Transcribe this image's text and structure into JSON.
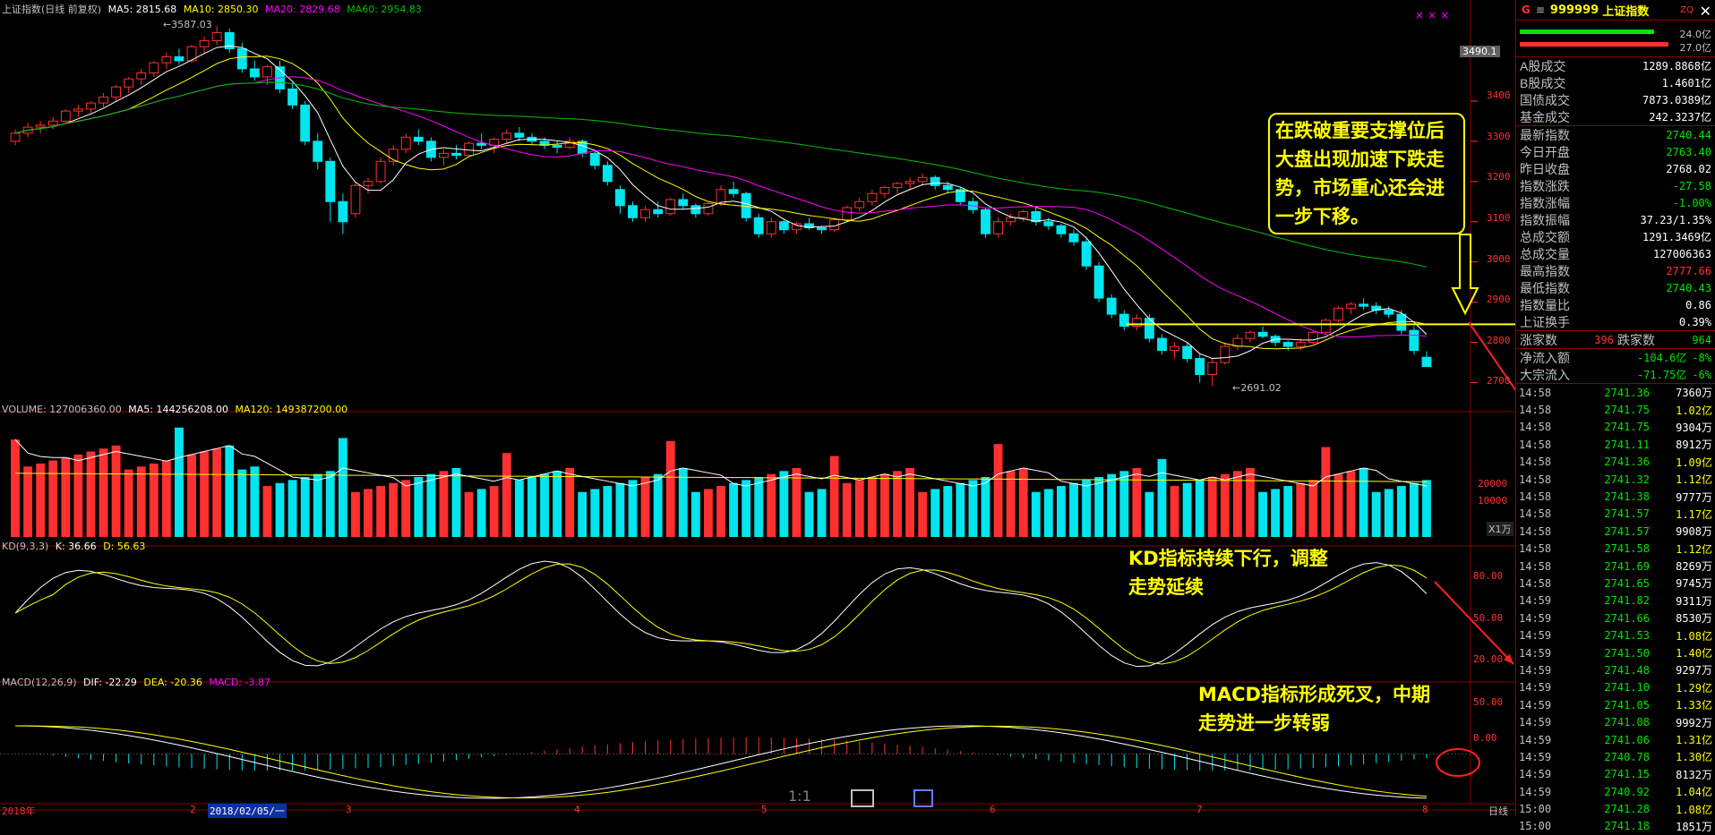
{
  "window_title": "上证指数(日线 前复权)",
  "legend_main": {
    "ma5": "MA5: 2815.68",
    "ma10": "MA10: 2850.30",
    "ma20": "MA20: 2829.68",
    "ma60": "MA60: 2954.83"
  },
  "legend_volume": {
    "vol": "VOLUME: 127006360.00",
    "ma5": "MA5: 144256208.00",
    "ma120": "MA120: 149387200.00"
  },
  "legend_kd": {
    "name": "KD(9,3,3)",
    "k": "K: 36.66",
    "d": "D: 56.63"
  },
  "legend_macd": {
    "name": "MACD(12,26,9)",
    "dif": "DIF: -22.29",
    "dea": "DEA: -20.36",
    "macd": "MACD: -3.87"
  },
  "price_high_label": "3587.03",
  "price_low_label": "2691.02",
  "current_price_tag": "3490.1",
  "volume_unit": "X1万",
  "price_axis": [
    "3400",
    "3300",
    "3200",
    "3100",
    "3000",
    "2900",
    "2800",
    "2700"
  ],
  "volume_axis": [
    "20000",
    "10000"
  ],
  "kd_axis": [
    "80.00",
    "50.00",
    "20.00"
  ],
  "macd_axis": [
    "50.00",
    "0.00"
  ],
  "x_axis": [
    "2018年",
    "2",
    "2018/02/05/一",
    "3",
    "4",
    "5",
    "6",
    "7",
    "8"
  ],
  "period_label": "日线",
  "toolbar_icons": {
    "ratio": "1:1"
  },
  "callouts": {
    "box": "在跌破重要支撑位后大盘出现加速下跌走势，市场重心还会进一步下移。",
    "kd": "KD指标持续下行，调整走势延续",
    "macd": "MACD指标形成死叉，中期走势进一步转弱"
  },
  "colors": {
    "up": "#ff3030",
    "down": "#00e5ee",
    "ma5": "#ffffff",
    "ma10": "#ffff00",
    "ma20": "#ff00ff",
    "ma60": "#00c000"
  },
  "side_panel": {
    "g_label": "G",
    "menu_icon": "≡",
    "code": "999999",
    "name": "上证指数",
    "sub": "ZQ",
    "bar_top_value": "24.0亿",
    "bar_bottom_value": "27.0亿",
    "stats_a": [
      {
        "k": "A股成交",
        "v": "1289.8868亿",
        "c": "white"
      },
      {
        "k": "B股成交",
        "v": "1.4601亿",
        "c": "white"
      },
      {
        "k": "国债成交",
        "v": "7873.0389亿",
        "c": "white"
      },
      {
        "k": "基金成交",
        "v": "242.3237亿",
        "c": "white"
      }
    ],
    "stats_b": [
      {
        "k": "最新指数",
        "v": "2740.44",
        "c": "green"
      },
      {
        "k": "今日开盘",
        "v": "2763.40",
        "c": "green"
      },
      {
        "k": "昨日收盘",
        "v": "2768.02",
        "c": "white"
      },
      {
        "k": "指数涨跌",
        "v": "-27.58",
        "c": "green"
      },
      {
        "k": "指数涨幅",
        "v": "-1.00%",
        "c": "green"
      },
      {
        "k": "指数振幅",
        "v": "37.23/1.35%",
        "c": "white"
      },
      {
        "k": "总成交额",
        "v": "1291.3469亿",
        "c": "white"
      },
      {
        "k": "总成交量",
        "v": "127006363",
        "c": "white"
      },
      {
        "k": "最高指数",
        "v": "2777.66",
        "c": "red"
      },
      {
        "k": "最低指数",
        "v": "2740.43",
        "c": "green"
      },
      {
        "k": "指数量比",
        "v": "0.86",
        "c": "white"
      },
      {
        "k": "上证换手",
        "v": "0.39%",
        "c": "white"
      }
    ],
    "up_label": "涨家数",
    "up_value": "396",
    "down_label": "跌家数",
    "down_value": "964",
    "flow": [
      {
        "k": "净流入额",
        "v": "-104.6亿",
        "pct": "-8%"
      },
      {
        "k": "大宗流入",
        "v": "-71.75亿",
        "pct": "-6%"
      }
    ],
    "ticks": [
      {
        "t": "14:58",
        "p": "2741.36",
        "v": "7360万",
        "w": true
      },
      {
        "t": "14:58",
        "p": "2741.75",
        "v": "1.02亿",
        "w": false
      },
      {
        "t": "14:58",
        "p": "2741.75",
        "v": "9304万",
        "w": true
      },
      {
        "t": "14:58",
        "p": "2741.11",
        "v": "8912万",
        "w": true
      },
      {
        "t": "14:58",
        "p": "2741.36",
        "v": "1.09亿",
        "w": false
      },
      {
        "t": "14:58",
        "p": "2741.32",
        "v": "1.12亿",
        "w": false
      },
      {
        "t": "14:58",
        "p": "2741.38",
        "v": "9777万",
        "w": true
      },
      {
        "t": "14:58",
        "p": "2741.57",
        "v": "1.17亿",
        "w": false
      },
      {
        "t": "14:58",
        "p": "2741.57",
        "v": "9908万",
        "w": true
      },
      {
        "t": "14:58",
        "p": "2741.58",
        "v": "1.12亿",
        "w": false
      },
      {
        "t": "14:58",
        "p": "2741.69",
        "v": "8269万",
        "w": true
      },
      {
        "t": "14:58",
        "p": "2741.65",
        "v": "9745万",
        "w": true
      },
      {
        "t": "14:59",
        "p": "2741.82",
        "v": "9311万",
        "w": true
      },
      {
        "t": "14:59",
        "p": "2741.66",
        "v": "8530万",
        "w": true
      },
      {
        "t": "14:59",
        "p": "2741.53",
        "v": "1.08亿",
        "w": false
      },
      {
        "t": "14:59",
        "p": "2741.50",
        "v": "1.40亿",
        "w": false
      },
      {
        "t": "14:59",
        "p": "2741.48",
        "v": "9297万",
        "w": true
      },
      {
        "t": "14:59",
        "p": "2741.10",
        "v": "1.29亿",
        "w": false
      },
      {
        "t": "14:59",
        "p": "2741.05",
        "v": "1.33亿",
        "w": false
      },
      {
        "t": "14:59",
        "p": "2741.08",
        "v": "9992万",
        "w": true
      },
      {
        "t": "14:59",
        "p": "2741.06",
        "v": "1.31亿",
        "w": false
      },
      {
        "t": "14:59",
        "p": "2740.78",
        "v": "1.30亿",
        "w": false
      },
      {
        "t": "14:59",
        "p": "2741.15",
        "v": "8132万",
        "w": true
      },
      {
        "t": "14:59",
        "p": "2740.92",
        "v": "1.04亿",
        "w": false
      },
      {
        "t": "15:00",
        "p": "2741.28",
        "v": "1.08亿",
        "w": false
      },
      {
        "t": "15:00",
        "p": "2741.18",
        "v": "1851万",
        "w": true
      }
    ]
  },
  "candles": [
    [
      3300,
      3330,
      3290,
      3320
    ],
    [
      3320,
      3345,
      3310,
      3335
    ],
    [
      3335,
      3350,
      3320,
      3340
    ],
    [
      3340,
      3360,
      3330,
      3350
    ],
    [
      3350,
      3380,
      3345,
      3375
    ],
    [
      3375,
      3390,
      3360,
      3380
    ],
    [
      3380,
      3400,
      3370,
      3395
    ],
    [
      3395,
      3420,
      3385,
      3410
    ],
    [
      3410,
      3440,
      3400,
      3435
    ],
    [
      3435,
      3460,
      3420,
      3455
    ],
    [
      3455,
      3480,
      3440,
      3470
    ],
    [
      3470,
      3500,
      3460,
      3495
    ],
    [
      3495,
      3520,
      3480,
      3510
    ],
    [
      3510,
      3530,
      3490,
      3500
    ],
    [
      3500,
      3540,
      3495,
      3535
    ],
    [
      3535,
      3560,
      3520,
      3550
    ],
    [
      3550,
      3587,
      3540,
      3570
    ],
    [
      3570,
      3580,
      3520,
      3530
    ],
    [
      3530,
      3545,
      3470,
      3480
    ],
    [
      3480,
      3500,
      3450,
      3460
    ],
    [
      3460,
      3490,
      3440,
      3485
    ],
    [
      3485,
      3500,
      3420,
      3430
    ],
    [
      3430,
      3445,
      3380,
      3390
    ],
    [
      3390,
      3400,
      3290,
      3300
    ],
    [
      3300,
      3320,
      3230,
      3250
    ],
    [
      3250,
      3260,
      3100,
      3150
    ],
    [
      3150,
      3170,
      3070,
      3100
    ],
    [
      3120,
      3200,
      3110,
      3190
    ],
    [
      3190,
      3210,
      3170,
      3200
    ],
    [
      3200,
      3260,
      3195,
      3250
    ],
    [
      3250,
      3290,
      3240,
      3280
    ],
    [
      3280,
      3320,
      3270,
      3310
    ],
    [
      3310,
      3330,
      3290,
      3300
    ],
    [
      3300,
      3310,
      3250,
      3260
    ],
    [
      3260,
      3280,
      3240,
      3270
    ],
    [
      3270,
      3290,
      3255,
      3265
    ],
    [
      3265,
      3300,
      3260,
      3295
    ],
    [
      3295,
      3320,
      3280,
      3290
    ],
    [
      3290,
      3310,
      3270,
      3305
    ],
    [
      3305,
      3330,
      3295,
      3320
    ],
    [
      3320,
      3335,
      3300,
      3310
    ],
    [
      3310,
      3320,
      3290,
      3300
    ],
    [
      3300,
      3310,
      3280,
      3290
    ],
    [
      3290,
      3300,
      3270,
      3285
    ],
    [
      3285,
      3310,
      3280,
      3300
    ],
    [
      3300,
      3305,
      3260,
      3270
    ],
    [
      3270,
      3280,
      3230,
      3240
    ],
    [
      3240,
      3250,
      3190,
      3200
    ],
    [
      3180,
      3190,
      3120,
      3140
    ],
    [
      3140,
      3150,
      3100,
      3110
    ],
    [
      3110,
      3140,
      3100,
      3130
    ],
    [
      3130,
      3150,
      3110,
      3120
    ],
    [
      3120,
      3160,
      3115,
      3155
    ],
    [
      3155,
      3170,
      3130,
      3140
    ],
    [
      3140,
      3145,
      3110,
      3120
    ],
    [
      3120,
      3150,
      3115,
      3145
    ],
    [
      3145,
      3190,
      3140,
      3180
    ],
    [
      3180,
      3200,
      3160,
      3170
    ],
    [
      3170,
      3175,
      3100,
      3110
    ],
    [
      3110,
      3120,
      3060,
      3070
    ],
    [
      3070,
      3110,
      3060,
      3100
    ],
    [
      3100,
      3105,
      3070,
      3080
    ],
    [
      3080,
      3100,
      3070,
      3095
    ],
    [
      3095,
      3110,
      3080,
      3085
    ],
    [
      3085,
      3090,
      3070,
      3080
    ],
    [
      3080,
      3110,
      3075,
      3105
    ],
    [
      3105,
      3140,
      3100,
      3135
    ],
    [
      3135,
      3160,
      3125,
      3150
    ],
    [
      3150,
      3180,
      3140,
      3170
    ],
    [
      3170,
      3190,
      3160,
      3185
    ],
    [
      3185,
      3200,
      3170,
      3195
    ],
    [
      3195,
      3210,
      3180,
      3200
    ],
    [
      3200,
      3220,
      3190,
      3210
    ],
    [
      3210,
      3215,
      3180,
      3190
    ],
    [
      3190,
      3200,
      3170,
      3180
    ],
    [
      3180,
      3185,
      3140,
      3150
    ],
    [
      3150,
      3160,
      3120,
      3130
    ],
    [
      3130,
      3135,
      3060,
      3070
    ],
    [
      3070,
      3110,
      3060,
      3100
    ],
    [
      3100,
      3120,
      3090,
      3110
    ],
    [
      3110,
      3130,
      3100,
      3125
    ],
    [
      3125,
      3135,
      3090,
      3100
    ],
    [
      3100,
      3110,
      3080,
      3090
    ],
    [
      3090,
      3095,
      3060,
      3070
    ],
    [
      3070,
      3080,
      3040,
      3050
    ],
    [
      3050,
      3060,
      2980,
      2990
    ],
    [
      2990,
      3000,
      2900,
      2910
    ],
    [
      2910,
      2920,
      2860,
      2870
    ],
    [
      2870,
      2880,
      2830,
      2840
    ],
    [
      2840,
      2870,
      2830,
      2860
    ],
    [
      2860,
      2870,
      2800,
      2810
    ],
    [
      2810,
      2820,
      2770,
      2780
    ],
    [
      2780,
      2800,
      2760,
      2790
    ],
    [
      2790,
      2800,
      2750,
      2760
    ],
    [
      2760,
      2770,
      2700,
      2720
    ],
    [
      2720,
      2760,
      2691,
      2750
    ],
    [
      2750,
      2800,
      2745,
      2790
    ],
    [
      2790,
      2820,
      2780,
      2810
    ],
    [
      2810,
      2830,
      2800,
      2825
    ],
    [
      2825,
      2840,
      2810,
      2815
    ],
    [
      2815,
      2820,
      2790,
      2800
    ],
    [
      2800,
      2805,
      2780,
      2790
    ],
    [
      2790,
      2810,
      2780,
      2800
    ],
    [
      2800,
      2830,
      2795,
      2825
    ],
    [
      2825,
      2860,
      2820,
      2855
    ],
    [
      2855,
      2890,
      2850,
      2885
    ],
    [
      2885,
      2900,
      2870,
      2895
    ],
    [
      2895,
      2910,
      2880,
      2890
    ],
    [
      2890,
      2900,
      2870,
      2880
    ],
    [
      2880,
      2890,
      2860,
      2870
    ],
    [
      2870,
      2880,
      2820,
      2830
    ],
    [
      2830,
      2840,
      2770,
      2780
    ],
    [
      2763,
      2778,
      2740,
      2740
    ]
  ]
}
